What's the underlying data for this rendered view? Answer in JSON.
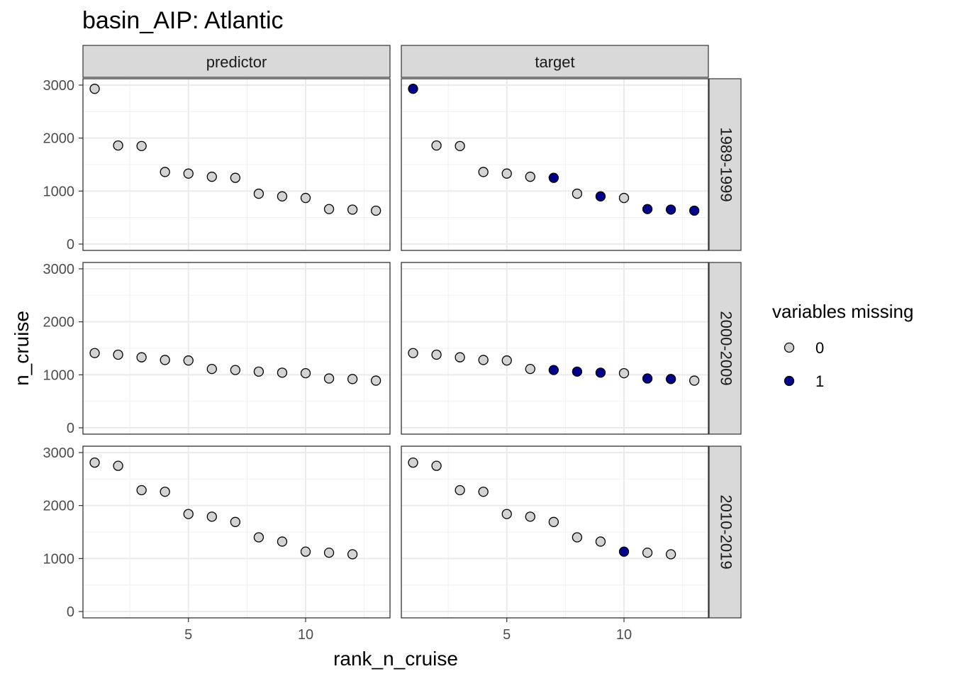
{
  "chart_data": {
    "type": "scatter",
    "title": "basin_AIP: Atlantic",
    "xlabel": "rank_n_cruise",
    "ylabel": "n_cruise",
    "xlim": [
      0.5,
      13.6
    ],
    "ylim": [
      -120,
      3120
    ],
    "x_ticks": [
      5,
      10
    ],
    "y_ticks": [
      0,
      1000,
      2000,
      3000
    ],
    "grid": true,
    "col_facets": [
      "predictor",
      "target"
    ],
    "row_facets": [
      "1989-1999",
      "2000-2009",
      "2010-2019"
    ],
    "legend": {
      "title": "variables missing",
      "position": "right",
      "entries": [
        {
          "label": "0",
          "color": "#d3d3d3"
        },
        {
          "label": "1",
          "color": "#00008b"
        }
      ]
    },
    "panels": [
      {
        "col": "predictor",
        "row": "1989-1999",
        "points": [
          [
            1,
            2930,
            0
          ],
          [
            2,
            1860,
            0
          ],
          [
            3,
            1850,
            0
          ],
          [
            4,
            1360,
            0
          ],
          [
            5,
            1330,
            0
          ],
          [
            6,
            1270,
            0
          ],
          [
            7,
            1250,
            0
          ],
          [
            8,
            950,
            0
          ],
          [
            9,
            900,
            0
          ],
          [
            10,
            870,
            0
          ],
          [
            11,
            660,
            0
          ],
          [
            12,
            650,
            0
          ],
          [
            13,
            630,
            0
          ]
        ]
      },
      {
        "col": "target",
        "row": "1989-1999",
        "points": [
          [
            1,
            2930,
            1
          ],
          [
            2,
            1860,
            0
          ],
          [
            3,
            1850,
            0
          ],
          [
            4,
            1360,
            0
          ],
          [
            5,
            1330,
            0
          ],
          [
            6,
            1270,
            0
          ],
          [
            7,
            1250,
            1
          ],
          [
            8,
            950,
            0
          ],
          [
            9,
            900,
            1
          ],
          [
            10,
            870,
            0
          ],
          [
            11,
            660,
            1
          ],
          [
            12,
            650,
            1
          ],
          [
            13,
            630,
            1
          ]
        ]
      },
      {
        "col": "predictor",
        "row": "2000-2009",
        "points": [
          [
            1,
            1410,
            0
          ],
          [
            2,
            1380,
            0
          ],
          [
            3,
            1330,
            0
          ],
          [
            4,
            1280,
            0
          ],
          [
            5,
            1270,
            0
          ],
          [
            6,
            1110,
            0
          ],
          [
            7,
            1090,
            0
          ],
          [
            8,
            1060,
            0
          ],
          [
            9,
            1040,
            0
          ],
          [
            10,
            1030,
            0
          ],
          [
            11,
            930,
            0
          ],
          [
            12,
            920,
            0
          ],
          [
            13,
            890,
            0
          ]
        ]
      },
      {
        "col": "target",
        "row": "2000-2009",
        "points": [
          [
            1,
            1410,
            0
          ],
          [
            2,
            1380,
            0
          ],
          [
            3,
            1330,
            0
          ],
          [
            4,
            1280,
            0
          ],
          [
            5,
            1270,
            0
          ],
          [
            6,
            1110,
            0
          ],
          [
            7,
            1090,
            1
          ],
          [
            8,
            1060,
            1
          ],
          [
            9,
            1040,
            1
          ],
          [
            10,
            1030,
            0
          ],
          [
            11,
            930,
            1
          ],
          [
            12,
            920,
            1
          ],
          [
            13,
            890,
            0
          ]
        ]
      },
      {
        "col": "predictor",
        "row": "2010-2019",
        "points": [
          [
            1,
            2810,
            0
          ],
          [
            2,
            2750,
            0
          ],
          [
            3,
            2290,
            0
          ],
          [
            4,
            2260,
            0
          ],
          [
            5,
            1840,
            0
          ],
          [
            6,
            1790,
            0
          ],
          [
            7,
            1690,
            0
          ],
          [
            8,
            1400,
            0
          ],
          [
            9,
            1320,
            0
          ],
          [
            10,
            1130,
            0
          ],
          [
            11,
            1110,
            0
          ],
          [
            12,
            1080,
            0
          ]
        ]
      },
      {
        "col": "target",
        "row": "2010-2019",
        "points": [
          [
            1,
            2810,
            0
          ],
          [
            2,
            2750,
            0
          ],
          [
            3,
            2290,
            0
          ],
          [
            4,
            2260,
            0
          ],
          [
            5,
            1840,
            0
          ],
          [
            6,
            1790,
            0
          ],
          [
            7,
            1690,
            0
          ],
          [
            8,
            1400,
            0
          ],
          [
            9,
            1320,
            0
          ],
          [
            10,
            1130,
            1
          ],
          [
            11,
            1110,
            0
          ],
          [
            12,
            1080,
            0
          ]
        ]
      }
    ]
  }
}
